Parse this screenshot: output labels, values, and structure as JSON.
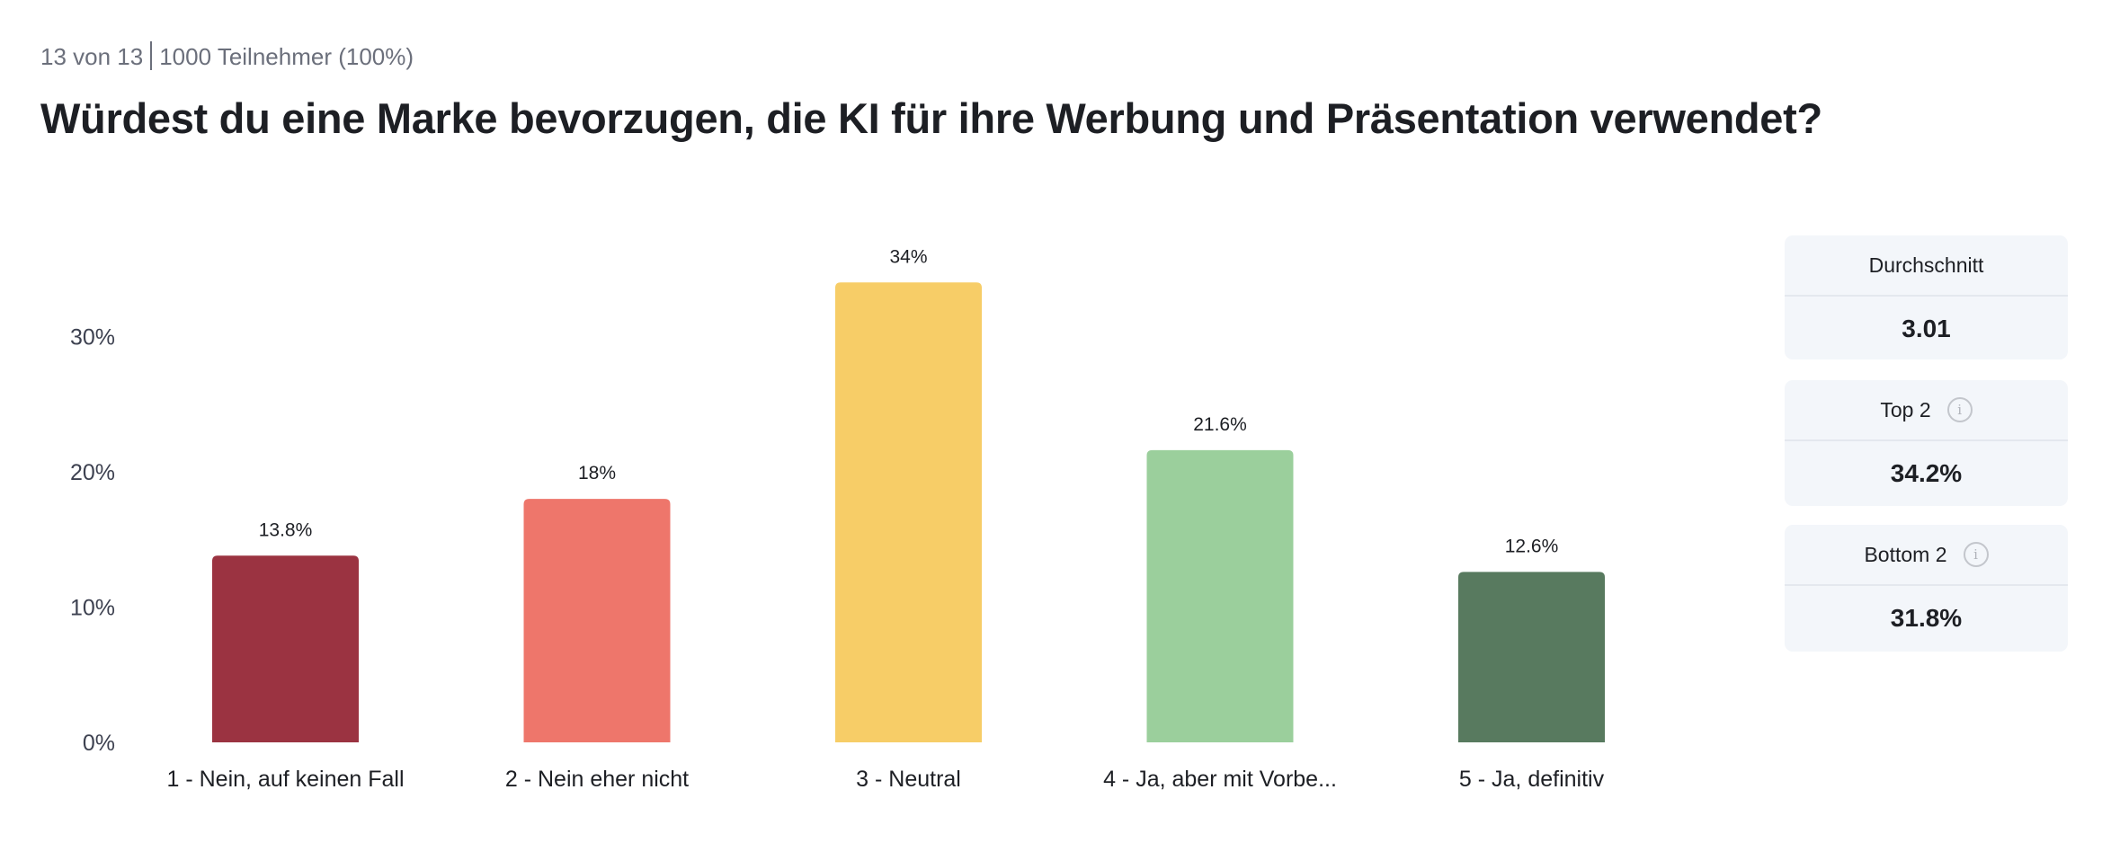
{
  "header": {
    "position": "13 von 13",
    "participants": "1000 Teilnehmer (100%)"
  },
  "chart_data": {
    "type": "bar",
    "title": "Würdest du eine Marke bevorzugen, die KI für ihre Werbung und Präsentation verwendet?",
    "categories": [
      "1 - Nein, auf keinen Fall",
      "2 - Nein eher nicht",
      "3 - Neutral",
      "4 - Ja, aber mit Vorbe...",
      "5 - Ja, definitiv"
    ],
    "values": [
      13.8,
      18,
      34,
      21.6,
      12.6
    ],
    "value_labels": [
      "13.8%",
      "18%",
      "34%",
      "21.6%",
      "12.6%"
    ],
    "colors": [
      "#9b3341",
      "#ee766b",
      "#f7cd67",
      "#9bcf9c",
      "#587a5f"
    ],
    "yticks": [
      0,
      10,
      20,
      30
    ],
    "ytick_labels": [
      "0%",
      "10%",
      "20%",
      "30%"
    ],
    "ylim": [
      0,
      36
    ],
    "xlabel": "",
    "ylabel": "",
    "grid": false
  },
  "stats": [
    {
      "label": "Durchschnitt",
      "value": "3.01",
      "info": false
    },
    {
      "label": "Top 2",
      "value": "34.2%",
      "info": true
    },
    {
      "label": "Bottom 2",
      "value": "31.8%",
      "info": true
    }
  ],
  "icons": {
    "info": "i"
  }
}
